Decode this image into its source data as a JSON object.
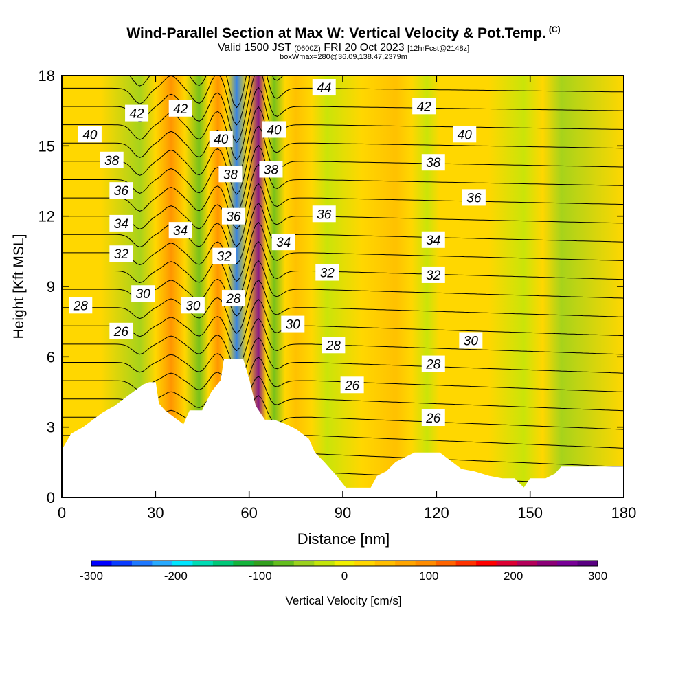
{
  "header": {
    "title": "Wind-Parallel Section at Max W: Vertical Velocity & Pot.Temp.",
    "copyright": "(C)",
    "valid_prefix": "Valid 1500 JST",
    "valid_utc": "(0600Z)",
    "valid_date": "FRI 20 Oct 2023",
    "forecast": "[12hrFcst@2148z]",
    "box_info": "boxWmax=280@36.09,138.47,2379m"
  },
  "colors": {
    "scale": [
      "#0000ff",
      "#0a3cff",
      "#1e78ff",
      "#28aaff",
      "#00e6ff",
      "#00dcb4",
      "#00c878",
      "#14b43c",
      "#32a01e",
      "#64be1e",
      "#9bd21e",
      "#c3e60a",
      "#f0f000",
      "#ffd700",
      "#ffbe00",
      "#ffa500",
      "#ff8c00",
      "#ff6400",
      "#ff3200",
      "#ff0000",
      "#dc0032",
      "#b4005a",
      "#8c0078",
      "#780096",
      "#5a0082"
    ],
    "terrain": "#ffffff",
    "contour": "#000000"
  },
  "chart_data": {
    "type": "heatmap",
    "title": "Wind-Parallel Section at Max W: Vertical Velocity & Pot.Temp.",
    "xlabel": "Distance [nm]",
    "ylabel": "Height [Kft MSL]",
    "xlim": [
      0,
      180
    ],
    "ylim": [
      0,
      18
    ],
    "xticks": [
      0,
      30,
      60,
      90,
      120,
      150,
      180
    ],
    "yticks": [
      0,
      3,
      6,
      9,
      12,
      15,
      18
    ],
    "colorbar": {
      "label": "Vertical Velocity [cm/s]",
      "range": [
        -300,
        300
      ],
      "ticks": [
        -300,
        -200,
        -100,
        0,
        100,
        200,
        300
      ]
    },
    "vertical_velocity_bands": [
      {
        "x_center": 25,
        "w": -60
      },
      {
        "x_center": 35,
        "w": 100
      },
      {
        "x_center": 44,
        "w": -70
      },
      {
        "x_center": 50,
        "w": 110
      },
      {
        "x_center": 56,
        "w": -250
      },
      {
        "x_center": 63,
        "w": 280
      },
      {
        "x_center": 68,
        "w": -80
      },
      {
        "x_center": 75,
        "w": 50
      },
      {
        "x_center": 85,
        "w": -20
      },
      {
        "x_center": 107,
        "w": 45
      },
      {
        "x_center": 117,
        "w": -25
      },
      {
        "x_center": 125,
        "w": 30
      },
      {
        "x_center": 148,
        "w": -15
      },
      {
        "x_center": 160,
        "w": -40
      }
    ],
    "terrain_profile": {
      "x": [
        0,
        3,
        7,
        10,
        13,
        17,
        20,
        23,
        26,
        28,
        30,
        31,
        33,
        35,
        39,
        41,
        45,
        48,
        51,
        52,
        55,
        58,
        60,
        62,
        65,
        68,
        72,
        75,
        79,
        81,
        84,
        88,
        91,
        95,
        99,
        101,
        104,
        107,
        110,
        113,
        117,
        121,
        124,
        128,
        132,
        137,
        141,
        145,
        148,
        150,
        155,
        158,
        160,
        163,
        167,
        171,
        175,
        180
      ],
      "height_kft": [
        2.0,
        2.7,
        3.0,
        3.3,
        3.6,
        3.9,
        4.2,
        4.5,
        4.8,
        4.9,
        4.9,
        4.0,
        3.7,
        3.5,
        3.1,
        3.7,
        3.7,
        4.5,
        5.0,
        5.9,
        5.9,
        5.9,
        5.0,
        3.9,
        3.3,
        3.3,
        3.1,
        2.9,
        2.5,
        1.9,
        1.5,
        0.9,
        0.4,
        0.4,
        0.4,
        0.9,
        1.1,
        1.5,
        1.7,
        1.9,
        1.9,
        1.9,
        1.6,
        1.2,
        1.1,
        0.9,
        0.8,
        0.8,
        0.4,
        0.8,
        0.8,
        1.0,
        1.3,
        1.3,
        1.3,
        1.3,
        1.3,
        1.3
      ]
    },
    "theta_contour_labels": [
      {
        "value": "42",
        "x": 24,
        "y": 16.4
      },
      {
        "value": "40",
        "x": 9,
        "y": 15.5
      },
      {
        "value": "38",
        "x": 16,
        "y": 14.4
      },
      {
        "value": "36",
        "x": 19,
        "y": 13.1
      },
      {
        "value": "34",
        "x": 19,
        "y": 11.7
      },
      {
        "value": "32",
        "x": 19,
        "y": 10.4
      },
      {
        "value": "30",
        "x": 26,
        "y": 8.7
      },
      {
        "value": "28",
        "x": 6,
        "y": 8.2
      },
      {
        "value": "26",
        "x": 19,
        "y": 7.1
      },
      {
        "value": "42",
        "x": 38,
        "y": 16.6
      },
      {
        "value": "34",
        "x": 38,
        "y": 11.4
      },
      {
        "value": "30",
        "x": 42,
        "y": 8.2
      },
      {
        "value": "40",
        "x": 51,
        "y": 15.3
      },
      {
        "value": "38",
        "x": 54,
        "y": 13.8
      },
      {
        "value": "36",
        "x": 55,
        "y": 12.0
      },
      {
        "value": "32",
        "x": 52,
        "y": 10.3
      },
      {
        "value": "28",
        "x": 55,
        "y": 8.5
      },
      {
        "value": "40",
        "x": 68,
        "y": 15.7
      },
      {
        "value": "38",
        "x": 67,
        "y": 14.0
      },
      {
        "value": "34",
        "x": 71,
        "y": 10.9
      },
      {
        "value": "30",
        "x": 74,
        "y": 7.4
      },
      {
        "value": "44",
        "x": 84,
        "y": 17.5
      },
      {
        "value": "36",
        "x": 84,
        "y": 12.1
      },
      {
        "value": "32",
        "x": 85,
        "y": 9.6
      },
      {
        "value": "28",
        "x": 87,
        "y": 6.5
      },
      {
        "value": "26",
        "x": 93,
        "y": 4.8
      },
      {
        "value": "42",
        "x": 116,
        "y": 16.7
      },
      {
        "value": "38",
        "x": 119,
        "y": 14.3
      },
      {
        "value": "34",
        "x": 119,
        "y": 11.0
      },
      {
        "value": "32",
        "x": 119,
        "y": 9.5
      },
      {
        "value": "28",
        "x": 119,
        "y": 5.7
      },
      {
        "value": "26",
        "x": 119,
        "y": 3.4
      },
      {
        "value": "40",
        "x": 129,
        "y": 15.5
      },
      {
        "value": "36",
        "x": 132,
        "y": 12.8
      },
      {
        "value": "30",
        "x": 131,
        "y": 6.7
      }
    ]
  }
}
